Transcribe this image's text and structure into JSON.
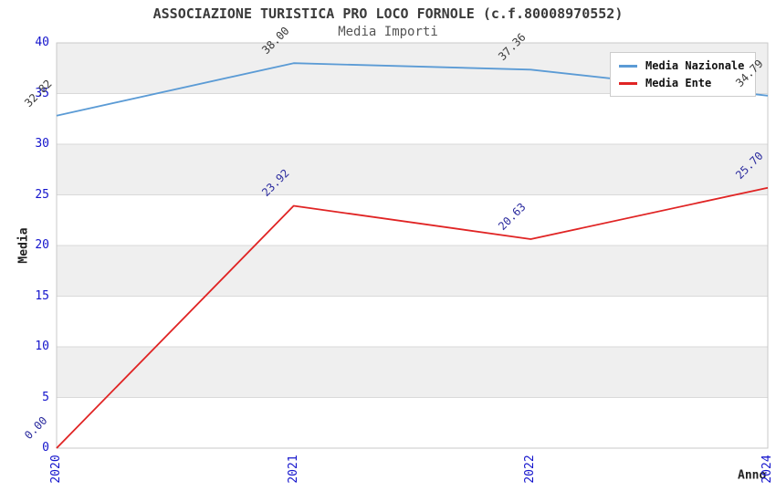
{
  "chart_data": {
    "type": "line",
    "title": "ASSOCIAZIONE TURISTICA PRO LOCO FORNOLE (c.f.80008970552)",
    "subtitle": "Media Importi",
    "xlabel": "Anno",
    "ylabel": "Media",
    "categories": [
      "2020",
      "2021",
      "2022",
      "2024"
    ],
    "series": [
      {
        "name": "Media Nazionale",
        "color": "#5b9bd5",
        "label_color": "#3a3a3a",
        "values": [
          32.82,
          38.0,
          37.36,
          34.79
        ]
      },
      {
        "name": "Media Ente",
        "color": "#e02424",
        "label_color": "#2b2b9e",
        "values": [
          0.0,
          23.92,
          20.63,
          25.7
        ]
      }
    ],
    "ylim": [
      0,
      40
    ],
    "yticks": [
      0,
      5,
      10,
      15,
      20,
      25,
      30,
      35,
      40
    ],
    "grid": "horizontal",
    "legend_position": "top-right",
    "band_fill": "#efefef",
    "grid_color": "#d9d9d9",
    "spine_color": "#c9c9c9",
    "tick_color": "#1414cc"
  }
}
